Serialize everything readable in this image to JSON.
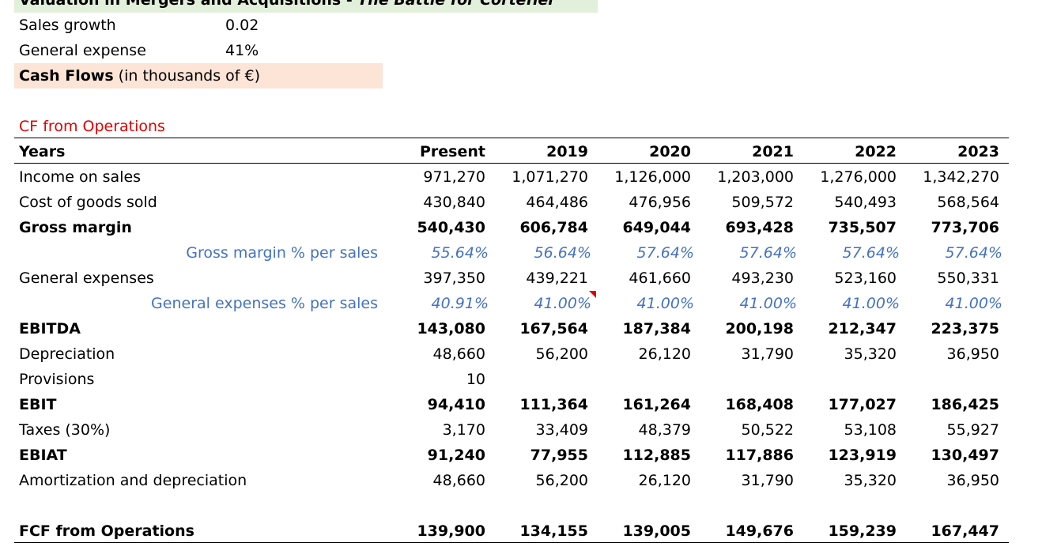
{
  "header": {
    "title_plain": "Valuation in Mergers and Acquisitions - ",
    "title_italic": "The Battle for Cortefiel",
    "sales_growth_label": "Sales growth",
    "sales_growth_value": "0.02",
    "general_expense_label": "General expense",
    "general_expense_value": "41%",
    "cash_flows_bold": "Cash Flows",
    "cash_flows_rest": " (in thousands of €)"
  },
  "section_title": "CF from Operations",
  "table": {
    "years_label": "Years",
    "columns": [
      "Present",
      "2019",
      "2020",
      "2021",
      "2022",
      "2023"
    ],
    "rows": [
      {
        "label": "Income on sales",
        "values": [
          "971,270",
          "1,071,270",
          "1,126,000",
          "1,203,000",
          "1,276,000",
          "1,342,270"
        ]
      },
      {
        "label": "Cost of goods sold",
        "values": [
          "430,840",
          "464,486",
          "476,956",
          "509,572",
          "540,493",
          "568,564"
        ]
      },
      {
        "label": "Gross margin",
        "values": [
          "540,430",
          "606,784",
          "649,044",
          "693,428",
          "735,507",
          "773,706"
        ]
      },
      {
        "label": "Gross margin % per sales",
        "values": [
          "55.64%",
          "56.64%",
          "57.64%",
          "57.64%",
          "57.64%",
          "57.64%"
        ]
      },
      {
        "label": "General expenses",
        "values": [
          "397,350",
          "439,221",
          "461,660",
          "493,230",
          "523,160",
          "550,331"
        ]
      },
      {
        "label": "General expenses % per sales",
        "values": [
          "40.91%",
          "41.00%",
          "41.00%",
          "41.00%",
          "41.00%",
          "41.00%"
        ]
      },
      {
        "label": "EBITDA",
        "values": [
          "143,080",
          "167,564",
          "187,384",
          "200,198",
          "212,347",
          "223,375"
        ]
      },
      {
        "label": "Depreciation",
        "values": [
          "48,660",
          "56,200",
          "26,120",
          "31,790",
          "35,320",
          "36,950"
        ]
      },
      {
        "label": "Provisions",
        "values": [
          "10",
          "",
          "",
          "",
          "",
          ""
        ]
      },
      {
        "label": "EBIT",
        "values": [
          "94,410",
          "111,364",
          "161,264",
          "168,408",
          "177,027",
          "186,425"
        ]
      },
      {
        "label": "Taxes (30%)",
        "values": [
          "3,170",
          "33,409",
          "48,379",
          "50,522",
          "53,108",
          "55,927"
        ]
      },
      {
        "label": "EBIAT",
        "values": [
          "91,240",
          "77,955",
          "112,885",
          "117,886",
          "123,919",
          "130,497"
        ]
      },
      {
        "label": "Amortization and depreciation",
        "values": [
          "48,660",
          "56,200",
          "26,120",
          "31,790",
          "35,320",
          "36,950"
        ]
      },
      {
        "label": "FCF from Operations",
        "values": [
          "139,900",
          "134,155",
          "139,005",
          "149,676",
          "159,239",
          "167,447"
        ]
      }
    ]
  }
}
